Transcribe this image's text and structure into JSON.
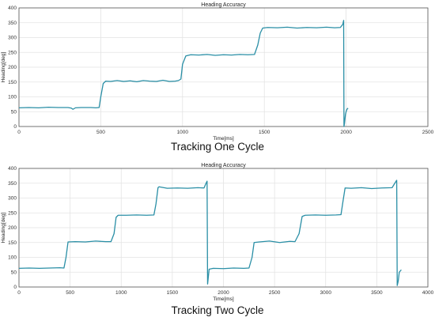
{
  "chart_data": [
    {
      "type": "line",
      "title": "Heading Accuracy",
      "xlabel": "Time[ms]",
      "ylabel": "Heading[deg]",
      "xlim": [
        0,
        2500
      ],
      "ylim": [
        0,
        400
      ],
      "xticks": [
        0,
        500,
        1000,
        1500,
        2000,
        2500
      ],
      "yticks": [
        0,
        50,
        100,
        150,
        200,
        250,
        300,
        350,
        400
      ],
      "grid": true,
      "color": "#2a8fa6",
      "caption": "Tracking One Cycle",
      "series": [
        {
          "x": [
            0,
            60,
            120,
            180,
            240,
            300,
            320,
            330,
            345,
            380,
            440,
            470,
            490,
            500,
            515,
            530,
            560,
            600,
            640,
            680,
            720,
            760,
            800,
            840,
            880,
            920,
            955,
            975,
            990,
            1000,
            1020,
            1050,
            1100,
            1150,
            1200,
            1250,
            1300,
            1350,
            1400,
            1440,
            1460,
            1475,
            1490,
            1520,
            1580,
            1640,
            1700,
            1760,
            1820,
            1880,
            1930,
            1965,
            1980,
            1985,
            1987,
            1990,
            1993,
            1996,
            2000,
            2005,
            2012
          ],
          "y": [
            63,
            64,
            63,
            65,
            64,
            64,
            62,
            58,
            63,
            64,
            64,
            63,
            64,
            100,
            145,
            153,
            152,
            155,
            152,
            154,
            151,
            155,
            153,
            152,
            156,
            152,
            153,
            155,
            160,
            210,
            238,
            242,
            241,
            243,
            240,
            242,
            241,
            243,
            242,
            243,
            275,
            315,
            332,
            334,
            333,
            335,
            332,
            334,
            333,
            335,
            333,
            334,
            345,
            358,
            0,
            10,
            25,
            40,
            50,
            58,
            62
          ]
        }
      ]
    },
    {
      "type": "line",
      "title": "Heading Accuracy",
      "xlabel": "Time[ms]",
      "ylabel": "Heading[deg]",
      "xlim": [
        0,
        4000
      ],
      "ylim": [
        0,
        400
      ],
      "xticks": [
        0,
        500,
        1000,
        1500,
        2000,
        2500,
        3000,
        3500,
        4000
      ],
      "yticks": [
        0,
        50,
        100,
        150,
        200,
        250,
        300,
        350,
        400
      ],
      "grid": true,
      "color": "#2a8fa6",
      "caption": "Tracking Two Cycle",
      "series": [
        {
          "x": [
            0,
            100,
            200,
            300,
            400,
            440,
            460,
            480,
            550,
            650,
            750,
            850,
            900,
            930,
            950,
            970,
            1050,
            1150,
            1250,
            1320,
            1340,
            1360,
            1370,
            1450,
            1550,
            1650,
            1750,
            1810,
            1830,
            1840,
            1845,
            1860,
            1900,
            2000,
            2100,
            2200,
            2250,
            2280,
            2300,
            2350,
            2450,
            2550,
            2650,
            2700,
            2740,
            2770,
            2800,
            2900,
            3000,
            3100,
            3150,
            3170,
            3190,
            3250,
            3350,
            3450,
            3550,
            3650,
            3680,
            3695,
            3700,
            3710,
            3720,
            3740
          ],
          "y": [
            63,
            64,
            63,
            64,
            65,
            64,
            100,
            152,
            153,
            152,
            155,
            153,
            153,
            180,
            235,
            242,
            242,
            243,
            242,
            243,
            280,
            335,
            338,
            333,
            334,
            333,
            335,
            334,
            350,
            357,
            10,
            60,
            63,
            62,
            64,
            63,
            64,
            100,
            150,
            152,
            155,
            150,
            154,
            153,
            180,
            238,
            242,
            243,
            242,
            243,
            244,
            290,
            334,
            333,
            335,
            332,
            334,
            335,
            352,
            360,
            5,
            20,
            50,
            58
          ]
        }
      ]
    }
  ]
}
